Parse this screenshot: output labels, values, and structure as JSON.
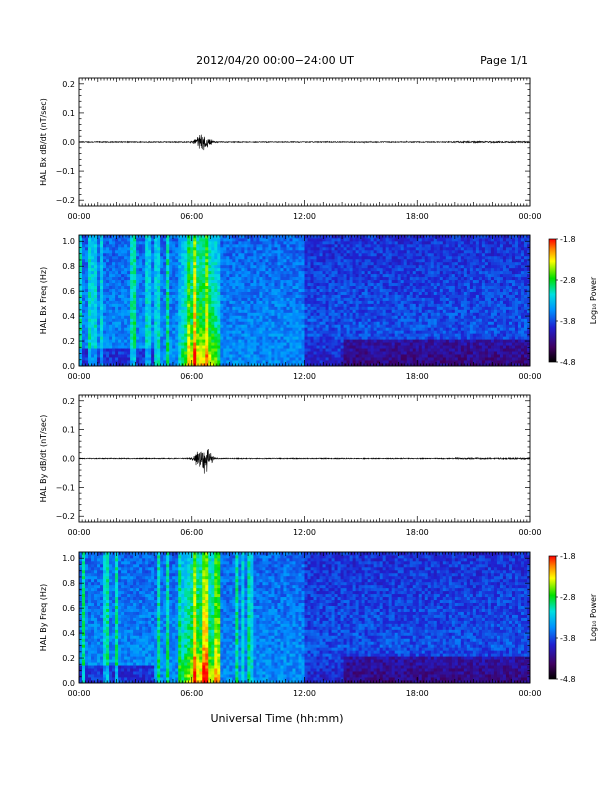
{
  "header": {
    "title": "2012/04/20  00:00−24:00 UT",
    "page": "Page 1/1"
  },
  "xaxis_label": "Universal Time (hh:mm)",
  "chart_data": [
    {
      "type": "line",
      "ylabel": "HAL Bx dB/dt (nT/sec)",
      "xlim": [
        0,
        24
      ],
      "ylim": [
        -0.22,
        0.22
      ],
      "x_ticks": [
        "00:00",
        "06:00",
        "12:00",
        "18:00",
        "00:00"
      ],
      "y_ticks": [
        "0.2",
        "0.1",
        "0.0",
        "−0.1",
        "−0.2"
      ],
      "grid": false,
      "burst": {
        "center_hour": 6.6,
        "width_hours": 0.8,
        "peak_amplitude": 0.04,
        "min_amplitude": -0.035
      }
    },
    {
      "type": "heatmap",
      "ylabel": "HAL Bx Freq (Hz)",
      "xlim": [
        0,
        24
      ],
      "ylim": [
        0,
        1.05
      ],
      "x_ticks": [
        "00:00",
        "06:00",
        "12:00",
        "18:00",
        "00:00"
      ],
      "y_ticks": [
        "1.0",
        "0.8",
        "0.6",
        "0.4",
        "0.2",
        "0.0"
      ],
      "colorbar": {
        "label": "Log₁₀ Power",
        "min": -4.8,
        "max": -1.8,
        "ticks": [
          "-1.8",
          "-2.8",
          "-3.8",
          "-4.8"
        ]
      },
      "event": {
        "start_hour": 5.3,
        "end_hour": 7.5,
        "peak_hour": 6.5
      }
    },
    {
      "type": "line",
      "ylabel": "HAL By dB/dt (nT/sec)",
      "xlim": [
        0,
        24
      ],
      "ylim": [
        -0.22,
        0.22
      ],
      "x_ticks": [
        "00:00",
        "06:00",
        "12:00",
        "18:00",
        "00:00"
      ],
      "y_ticks": [
        "0.2",
        "0.1",
        "0.0",
        "−0.1",
        "−0.2"
      ],
      "grid": false,
      "burst": {
        "center_hour": 6.6,
        "width_hours": 0.8,
        "peak_amplitude": 0.07,
        "min_amplitude": -0.06
      }
    },
    {
      "type": "heatmap",
      "ylabel": "HAL By Freq (Hz)",
      "xlim": [
        0,
        24
      ],
      "ylim": [
        0,
        1.05
      ],
      "x_ticks": [
        "00:00",
        "06:00",
        "12:00",
        "18:00",
        "00:00"
      ],
      "y_ticks": [
        "1.0",
        "0.8",
        "0.6",
        "0.4",
        "0.2",
        "0.0"
      ],
      "colorbar": {
        "label": "Log₁₀ Power",
        "min": -4.8,
        "max": -1.8,
        "ticks": [
          "-1.8",
          "-2.8",
          "-3.8",
          "-4.8"
        ]
      },
      "event": {
        "start_hour": 5.3,
        "end_hour": 7.5,
        "peak_hour": 6.5
      }
    }
  ]
}
